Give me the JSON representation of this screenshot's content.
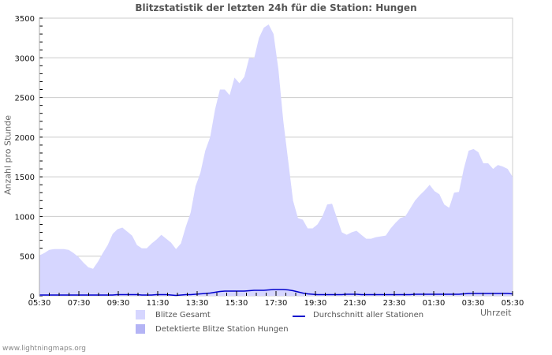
{
  "chart_data": {
    "type": "area",
    "title": "Blitzstatistik der letzten 24h für die Station: Hungen",
    "xlabel": "Uhrzeit",
    "ylabel": "Anzahl pro Stunde",
    "ylim": [
      0,
      3500
    ],
    "yticks": [
      0,
      500,
      1000,
      1500,
      2000,
      2500,
      3000,
      3500
    ],
    "xticks": [
      "05:30",
      "07:30",
      "09:30",
      "11:30",
      "13:30",
      "15:30",
      "17:30",
      "19:30",
      "21:30",
      "23:30",
      "01:30",
      "03:30",
      "05:30"
    ],
    "grid": true,
    "legend_position": "bottom",
    "x_step_minutes": 15,
    "series": [
      {
        "name": "Blitze Gesamt",
        "kind": "area",
        "color": "#d6d6ff",
        "values": [
          510,
          540,
          580,
          590,
          590,
          590,
          580,
          540,
          490,
          420,
          360,
          340,
          430,
          540,
          640,
          780,
          840,
          860,
          810,
          760,
          640,
          600,
          600,
          660,
          710,
          770,
          720,
          670,
          590,
          660,
          870,
          1050,
          1380,
          1550,
          1830,
          2000,
          2350,
          2600,
          2600,
          2530,
          2750,
          2680,
          2760,
          3000,
          2990,
          3250,
          3380,
          3420,
          3300,
          2850,
          2200,
          1700,
          1200,
          980,
          960,
          850,
          850,
          900,
          1000,
          1150,
          1160,
          980,
          800,
          770,
          800,
          820,
          770,
          720,
          720,
          740,
          750,
          760,
          850,
          920,
          980,
          1000,
          1100,
          1200,
          1270,
          1330,
          1400,
          1320,
          1280,
          1150,
          1110,
          1300,
          1310,
          1600,
          1830,
          1850,
          1810,
          1670,
          1670,
          1600,
          1650,
          1630,
          1600,
          1500
        ]
      },
      {
        "name": "Detektierte Blitze Station Hungen",
        "kind": "area",
        "color": "#b4b4f5",
        "values": []
      },
      {
        "name": "Durchschnitt aller Stationen",
        "kind": "line",
        "color": "#0000cc",
        "values": [
          10,
          10,
          10,
          10,
          10,
          10,
          10,
          10,
          10,
          10,
          10,
          10,
          10,
          10,
          10,
          10,
          15,
          15,
          15,
          15,
          15,
          10,
          10,
          10,
          15,
          15,
          15,
          10,
          5,
          10,
          15,
          15,
          20,
          25,
          30,
          35,
          45,
          55,
          60,
          60,
          60,
          60,
          60,
          65,
          70,
          70,
          70,
          75,
          80,
          80,
          80,
          75,
          65,
          50,
          35,
          25,
          20,
          15,
          15,
          15,
          15,
          15,
          15,
          20,
          20,
          20,
          15,
          15,
          15,
          15,
          15,
          15,
          15,
          15,
          15,
          15,
          15,
          20,
          20,
          20,
          20,
          20,
          20,
          20,
          20,
          20,
          20,
          25,
          30,
          30,
          30,
          30,
          30,
          30,
          30,
          30,
          30,
          25
        ]
      }
    ]
  },
  "legend": {
    "items": [
      {
        "label": "Blitze Gesamt",
        "color": "#d6d6ff"
      },
      {
        "label": "Detektierte Blitze Station Hungen",
        "color": "#b4b4f5"
      },
      {
        "label": "Durchschnitt aller Stationen",
        "color": "#0000cc"
      }
    ]
  },
  "colors": {
    "grid": "#cccccc",
    "frame": "#cccccc",
    "area": "#d6d6ff",
    "line": "#0000cc"
  },
  "footer": "www.lightningmaps.org"
}
